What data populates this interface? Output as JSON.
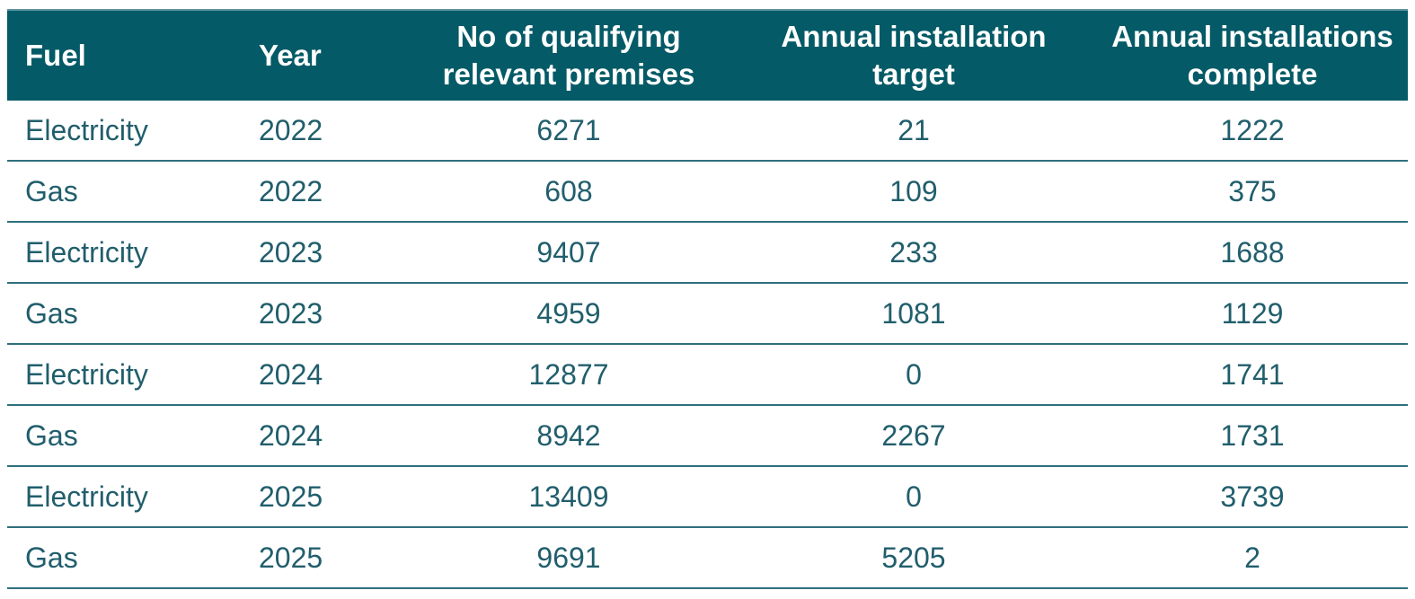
{
  "colors": {
    "header_bg": "#045a66",
    "header_text": "#ffffff",
    "body_text": "#215e6c",
    "divider": "#2f6f7d",
    "header_top_edge": "#5d93a0",
    "page_bg": "#ffffff"
  },
  "table": {
    "columns": {
      "fuel": "Fuel",
      "year": "Year",
      "premises": "No of qualifying\nrelevant premises",
      "target": "Annual installation\ntarget",
      "complete": "Annual installations\ncomplete"
    },
    "rows": [
      {
        "fuel": "Electricity",
        "year": "2022",
        "premises": "6271",
        "target": "21",
        "complete": "1222"
      },
      {
        "fuel": "Gas",
        "year": "2022",
        "premises": "608",
        "target": "109",
        "complete": "375"
      },
      {
        "fuel": "Electricity",
        "year": "2023",
        "premises": "9407",
        "target": "233",
        "complete": "1688"
      },
      {
        "fuel": "Gas",
        "year": "2023",
        "premises": "4959",
        "target": "1081",
        "complete": "1129"
      },
      {
        "fuel": "Electricity",
        "year": "2024",
        "premises": "12877",
        "target": "0",
        "complete": "1741"
      },
      {
        "fuel": "Gas",
        "year": "2024",
        "premises": "8942",
        "target": "2267",
        "complete": "1731"
      },
      {
        "fuel": "Electricity",
        "year": "2025",
        "premises": "13409",
        "target": "0",
        "complete": "3739"
      },
      {
        "fuel": "Gas",
        "year": "2025",
        "premises": "9691",
        "target": "5205",
        "complete": "2"
      }
    ]
  },
  "chart_data": {
    "type": "table",
    "title": "",
    "columns": [
      "Fuel",
      "Year",
      "No of qualifying relevant premises",
      "Annual installation target",
      "Annual installations complete"
    ],
    "rows": [
      [
        "Electricity",
        2022,
        6271,
        21,
        1222
      ],
      [
        "Gas",
        2022,
        608,
        109,
        375
      ],
      [
        "Electricity",
        2023,
        9407,
        233,
        1688
      ],
      [
        "Gas",
        2023,
        4959,
        1081,
        1129
      ],
      [
        "Electricity",
        2024,
        12877,
        0,
        1741
      ],
      [
        "Gas",
        2024,
        8942,
        2267,
        1731
      ],
      [
        "Electricity",
        2025,
        13409,
        0,
        3739
      ],
      [
        "Gas",
        2025,
        9691,
        5205,
        2
      ]
    ]
  }
}
